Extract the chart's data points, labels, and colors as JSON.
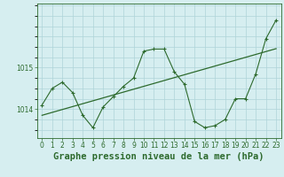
{
  "title": "Graphe pression niveau de la mer (hPa)",
  "x_labels": [
    "0",
    "1",
    "2",
    "3",
    "4",
    "5",
    "6",
    "7",
    "8",
    "9",
    "10",
    "11",
    "12",
    "13",
    "14",
    "15",
    "16",
    "17",
    "18",
    "19",
    "20",
    "21",
    "22",
    "23"
  ],
  "x_values": [
    0,
    1,
    2,
    3,
    4,
    5,
    6,
    7,
    8,
    9,
    10,
    11,
    12,
    13,
    14,
    15,
    16,
    17,
    18,
    19,
    20,
    21,
    22,
    23
  ],
  "y_main": [
    1014.1,
    1014.5,
    1014.65,
    1014.4,
    1013.85,
    1013.55,
    1014.05,
    1014.3,
    1014.55,
    1014.75,
    1015.4,
    1015.45,
    1015.45,
    1014.9,
    1014.6,
    1013.7,
    1013.55,
    1013.6,
    1013.75,
    1014.25,
    1014.25,
    1014.85,
    1015.7,
    1016.15
  ],
  "y_trend": [
    1013.85,
    1013.92,
    1013.99,
    1014.06,
    1014.13,
    1014.2,
    1014.27,
    1014.34,
    1014.41,
    1014.48,
    1014.55,
    1014.62,
    1014.69,
    1014.76,
    1014.83,
    1014.9,
    1014.97,
    1015.04,
    1015.11,
    1015.18,
    1015.25,
    1015.32,
    1015.39,
    1015.46
  ],
  "line_color": "#2d6a2d",
  "bg_color": "#d6eef0",
  "grid_color": "#aed4d8",
  "ylim_min": 1013.3,
  "ylim_max": 1016.55,
  "ytick_vals": [
    1014,
    1015
  ],
  "ytick_labels": [
    "1014",
    "1015"
  ],
  "title_fontsize": 7.5,
  "tick_fontsize": 5.5
}
